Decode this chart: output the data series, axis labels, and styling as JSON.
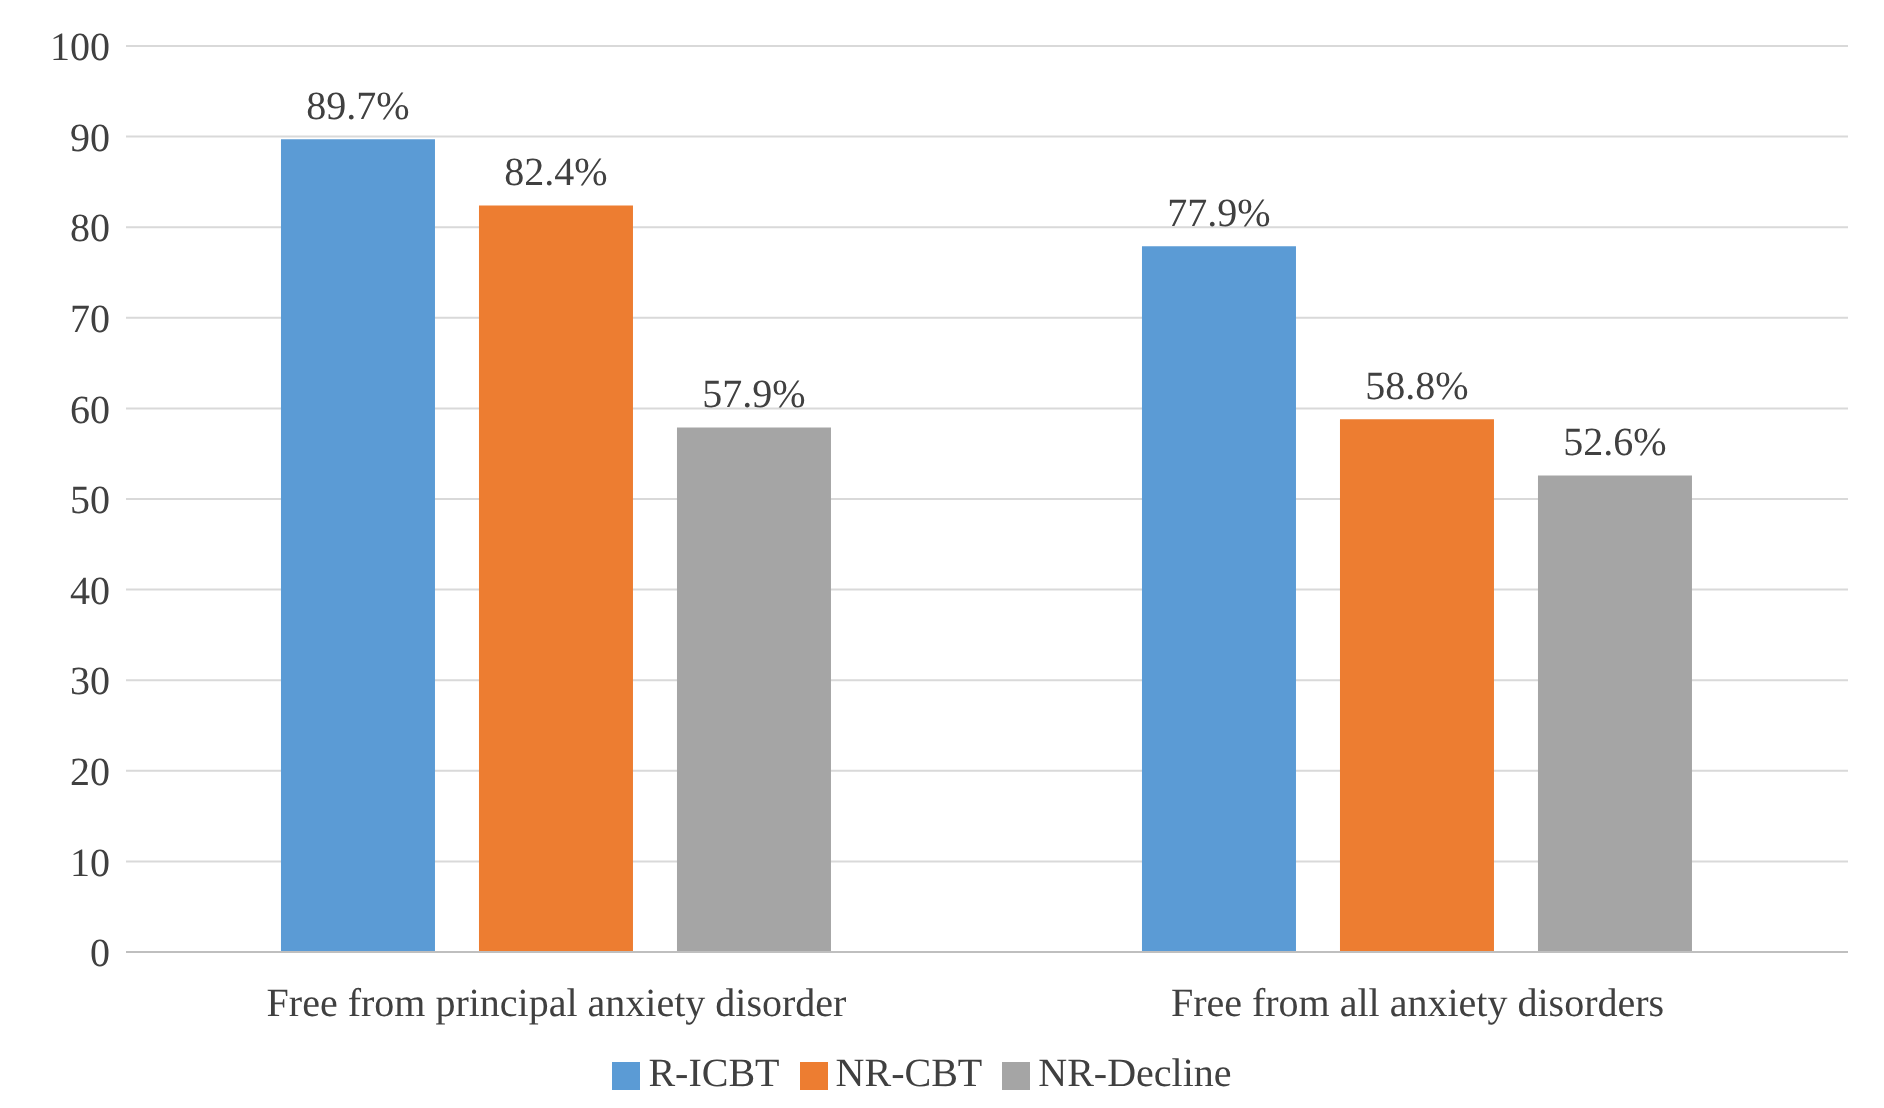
{
  "chart_data": {
    "type": "bar",
    "categories": [
      "Free from principal anxiety disorder",
      "Free from all anxiety disorders"
    ],
    "series": [
      {
        "name": "R-ICBT",
        "color": "#5b9bd5",
        "values": [
          89.7,
          77.9
        ],
        "value_labels": [
          "89.7%",
          "77.9%"
        ]
      },
      {
        "name": "NR-CBT",
        "color": "#ed7d31",
        "values": [
          82.4,
          58.8
        ],
        "value_labels": [
          "82.4%",
          "58.8%"
        ]
      },
      {
        "name": "NR-Decline",
        "color": "#a5a5a5",
        "values": [
          57.9,
          52.6
        ],
        "value_labels": [
          "57.9%",
          "52.6%"
        ]
      }
    ],
    "ylim": [
      0,
      100
    ],
    "yticks": [
      0,
      10,
      20,
      30,
      40,
      50,
      60,
      70,
      80,
      90,
      100
    ],
    "grid": "y",
    "legend": "bottom"
  }
}
